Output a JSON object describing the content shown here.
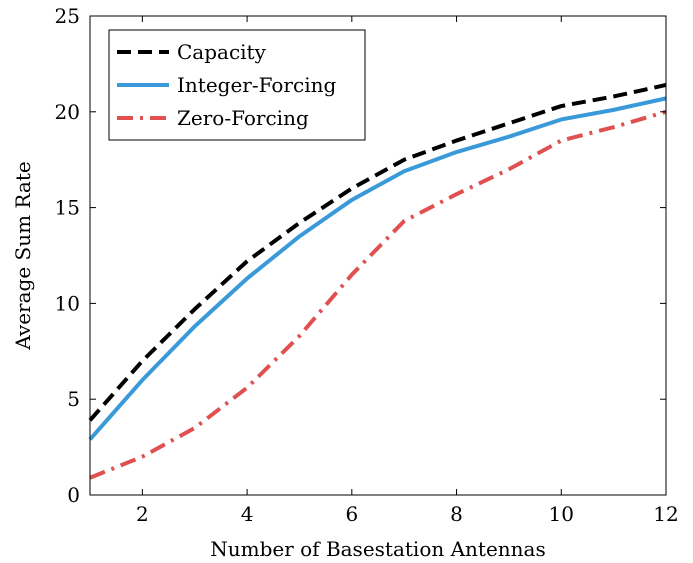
{
  "chart_data": {
    "type": "line",
    "title": "",
    "xlabel": "Number of Basestation Antennas",
    "ylabel": "Average Sum Rate",
    "xlim": [
      1,
      12
    ],
    "ylim": [
      0,
      25
    ],
    "xticks": [
      2,
      4,
      6,
      8,
      10,
      12
    ],
    "yticks": [
      0,
      5,
      10,
      15,
      20,
      25
    ],
    "grid": false,
    "legend_position": "top-left",
    "x": [
      1,
      2,
      3,
      4,
      5,
      6,
      7,
      8,
      9,
      10,
      11,
      12
    ],
    "series": [
      {
        "name": "Capacity",
        "color": "#000000",
        "style": "dashed",
        "values": [
          3.9,
          7.0,
          9.7,
          12.2,
          14.2,
          16.0,
          17.5,
          18.5,
          19.4,
          20.3,
          20.8,
          21.4
        ]
      },
      {
        "name": "Integer-Forcing",
        "color": "#3a9ad9",
        "style": "solid",
        "values": [
          2.9,
          6.0,
          8.8,
          11.3,
          13.5,
          15.4,
          16.9,
          17.9,
          18.7,
          19.6,
          20.1,
          20.7
        ]
      },
      {
        "name": "Zero-Forcing",
        "color": "#e05050",
        "style": "dashdot",
        "values": [
          0.9,
          2.0,
          3.5,
          5.6,
          8.3,
          11.5,
          14.3,
          15.7,
          17.0,
          18.5,
          19.2,
          20.0
        ]
      }
    ]
  }
}
